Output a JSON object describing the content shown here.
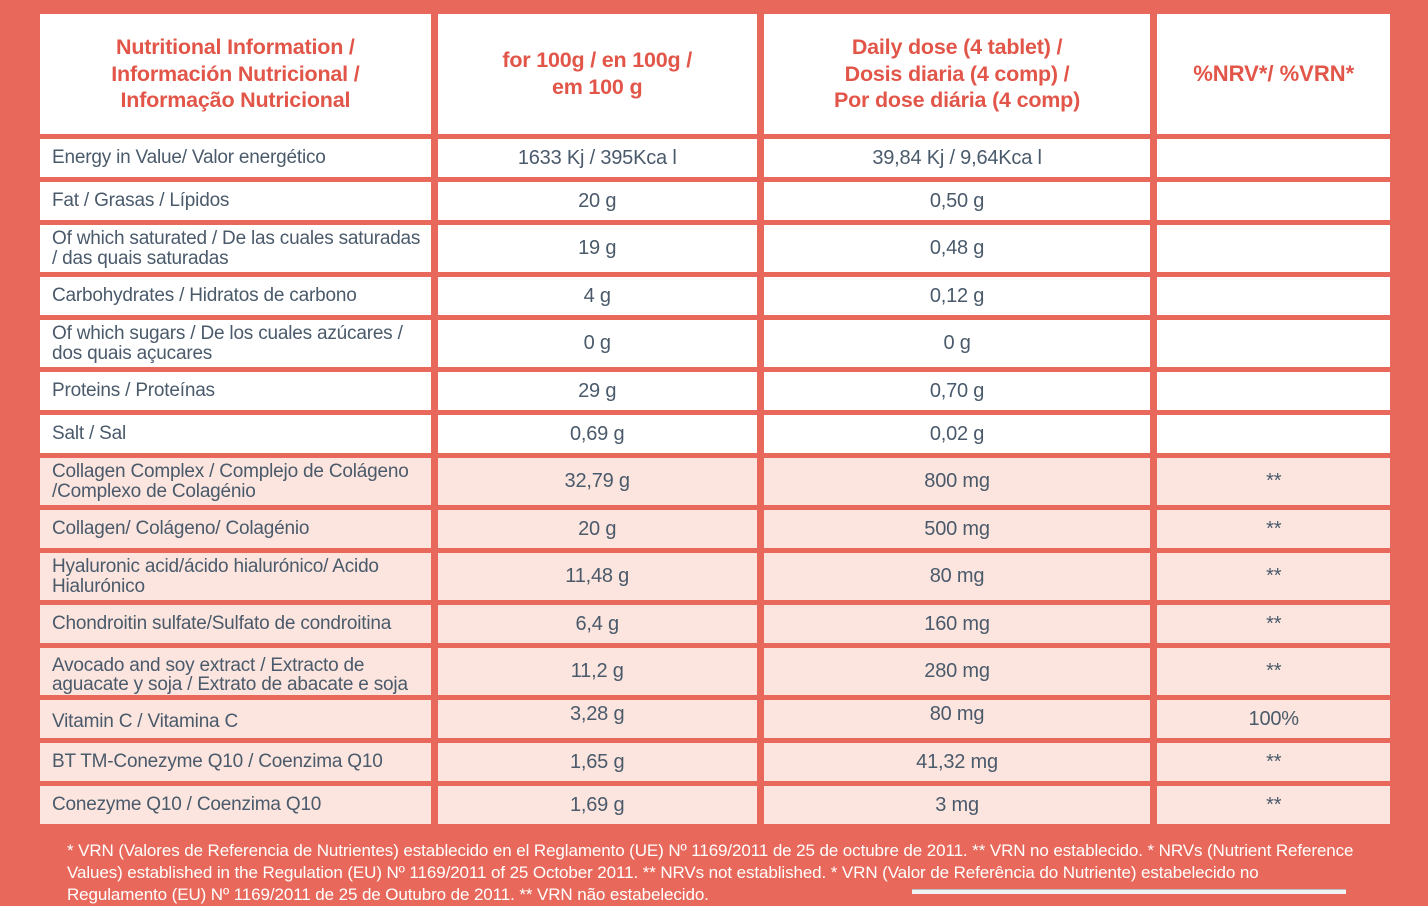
{
  "colors": {
    "background_coral": "#E8695B",
    "header_text_red": "#E25649",
    "body_text_slate": "#4A5A6B",
    "highlight_row_pink": "#FBE5DE",
    "plain_row_white": "#FFFFFF",
    "footnote_text": "#FFFFFF"
  },
  "table": {
    "columns": [
      {
        "label": "Nutritional Information /\nInformación Nutricional /\nInformação Nutricional"
      },
      {
        "label": "for 100g / en 100g /\nem 100 g"
      },
      {
        "label": "Daily dose (4 tablet) /\nDosis diaria (4 comp) /\nPor dose diária (4 comp)"
      },
      {
        "label": "%NRV*/ %VRN*"
      }
    ],
    "rows": [
      {
        "label": "Energy in Value/ Valor energético",
        "per_100g": "1633 Kj / 395Kca l",
        "daily_dose": "39,84 Kj / 9,64Kca l",
        "nrv": ""
      },
      {
        "label": "Fat / Grasas / Lípidos",
        "per_100g": "20 g",
        "daily_dose": "0,50 g",
        "nrv": ""
      },
      {
        "label": "Of which saturated / De las cuales saturadas / das quais saturadas",
        "per_100g": "19 g",
        "daily_dose": "0,48 g",
        "nrv": ""
      },
      {
        "label": "Carbohydrates / Hidratos de carbono",
        "per_100g": "4 g",
        "daily_dose": "0,12 g",
        "nrv": ""
      },
      {
        "label": "Of which sugars / De los cuales azúcares / dos quais açucares",
        "per_100g": "0 g",
        "daily_dose": "0 g",
        "nrv": ""
      },
      {
        "label": "Proteins / Proteínas",
        "per_100g": "29 g",
        "daily_dose": "0,70 g",
        "nrv": ""
      },
      {
        "label": "Salt / Sal",
        "per_100g": "0,69 g",
        "daily_dose": "0,02 g",
        "nrv": ""
      },
      {
        "label": "Collagen Complex / Complejo de Colágeno /Complexo de Colagénio",
        "per_100g": "32,79 g",
        "daily_dose": "800 mg",
        "nrv": "**"
      },
      {
        "label": "Collagen/ Colágeno/ Colagénio",
        "per_100g": "20 g",
        "daily_dose": "500 mg",
        "nrv": "**"
      },
      {
        "label": "Hyaluronic acid/ácido hialurónico/ Acido Hialurónico",
        "per_100g": "11,48 g",
        "daily_dose": "80 mg",
        "nrv": "**"
      },
      {
        "label": "Chondroitin sulfate/Sulfato de condroitina",
        "per_100g": "6,4 g",
        "daily_dose": "160 mg",
        "nrv": "**"
      },
      {
        "label": "Avocado and soy extract / Extracto de aguacate y soja / Extrato de abacate e soja",
        "per_100g": "11,2 g",
        "daily_dose": "280 mg",
        "nrv": "**"
      },
      {
        "label": "Vitamin C / Vitamina C",
        "per_100g": "3,28 g",
        "daily_dose": "80 mg",
        "nrv": "100%"
      },
      {
        "label": "BT TM-Conezyme Q10 / Coenzima Q10",
        "per_100g": "1,65 g",
        "daily_dose": "41,32 mg",
        "nrv": "**"
      },
      {
        "label": "Conezyme Q10 / Coenzima Q10",
        "per_100g": "1,69 g",
        "daily_dose": "3 mg",
        "nrv": "**"
      }
    ]
  },
  "footnote": {
    "text": "* VRN (Valores de Referencia de Nutrientes) establecido en el Reglamento (UE) Nº 1169/2011 de 25 de octubre de 2011. ** VRN no establecido. * NRVs (Nutrient Reference Values) established in the Regulation (EU) Nº 1169/2011 of 25 October 2011. ** NRVs not established. * VRN (Valor de Referência do Nutriente) estabelecido no Regulamento (EU) Nº 1169/2011 de 25 de Outubro de 2011. ** VRN não estabelecido."
  }
}
